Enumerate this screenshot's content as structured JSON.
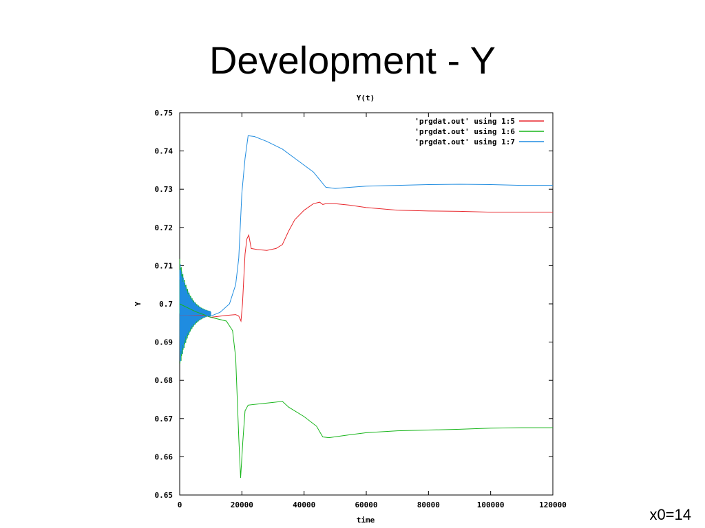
{
  "slide": {
    "title": "Development - Y",
    "footnote": "x0=14"
  },
  "chart_data": {
    "type": "line",
    "title": "Y(t)",
    "xlabel": "time",
    "ylabel": "Y",
    "xlim": [
      0,
      120000
    ],
    "ylim": [
      0.65,
      0.75
    ],
    "x_ticks": [
      "0",
      "20000",
      "40000",
      "60000",
      "80000",
      "100000",
      "120000"
    ],
    "y_ticks": [
      "0.65",
      "0.66",
      "0.67",
      "0.68",
      "0.69",
      "0.7",
      "0.71",
      "0.72",
      "0.73",
      "0.74",
      "0.75"
    ],
    "legend_position": "top-right",
    "series": [
      {
        "name": "'prgdat.out' using 1:5",
        "color": "#e8262b",
        "points": [
          [
            0,
            0.697
          ],
          [
            8000,
            0.697
          ],
          [
            10000,
            0.6965
          ],
          [
            15000,
            0.697
          ],
          [
            18000,
            0.6972
          ],
          [
            19000,
            0.6968
          ],
          [
            19700,
            0.6955
          ],
          [
            20200,
            0.7
          ],
          [
            21000,
            0.713
          ],
          [
            21600,
            0.717
          ],
          [
            22200,
            0.718
          ],
          [
            23000,
            0.7145
          ],
          [
            25000,
            0.7142
          ],
          [
            28000,
            0.714
          ],
          [
            31000,
            0.7145
          ],
          [
            33000,
            0.7155
          ],
          [
            35000,
            0.719
          ],
          [
            37000,
            0.722
          ],
          [
            40000,
            0.7245
          ],
          [
            43000,
            0.7262
          ],
          [
            45000,
            0.7266
          ],
          [
            46000,
            0.726
          ],
          [
            47000,
            0.7262
          ],
          [
            50000,
            0.7262
          ],
          [
            55000,
            0.7258
          ],
          [
            60000,
            0.7252
          ],
          [
            70000,
            0.7245
          ],
          [
            80000,
            0.7243
          ],
          [
            90000,
            0.7242
          ],
          [
            100000,
            0.724
          ],
          [
            110000,
            0.724
          ],
          [
            120000,
            0.724
          ]
        ]
      },
      {
        "name": "'prgdat.out' using 1:6",
        "color": "#17b51a",
        "points": [
          [
            0,
            0.7
          ],
          [
            5000,
            0.698
          ],
          [
            10000,
            0.6965
          ],
          [
            15000,
            0.6955
          ],
          [
            17000,
            0.693
          ],
          [
            18000,
            0.686
          ],
          [
            19000,
            0.665
          ],
          [
            19600,
            0.6545
          ],
          [
            20300,
            0.664
          ],
          [
            21000,
            0.672
          ],
          [
            22000,
            0.6735
          ],
          [
            25000,
            0.6738
          ],
          [
            30000,
            0.6742
          ],
          [
            33000,
            0.6745
          ],
          [
            35000,
            0.673
          ],
          [
            40000,
            0.6705
          ],
          [
            44000,
            0.668
          ],
          [
            46000,
            0.6652
          ],
          [
            48000,
            0.665
          ],
          [
            55000,
            0.6658
          ],
          [
            60000,
            0.6663
          ],
          [
            70000,
            0.6668
          ],
          [
            80000,
            0.667
          ],
          [
            90000,
            0.6672
          ],
          [
            100000,
            0.6675
          ],
          [
            110000,
            0.6676
          ],
          [
            120000,
            0.6676
          ]
        ]
      },
      {
        "name": "'prgdat.out' using 1:7",
        "color": "#1f8ce0",
        "points": [
          [
            0,
            0.697
          ],
          [
            10000,
            0.6968
          ],
          [
            13000,
            0.6978
          ],
          [
            16000,
            0.7
          ],
          [
            18000,
            0.705
          ],
          [
            19000,
            0.712
          ],
          [
            20000,
            0.729
          ],
          [
            21000,
            0.738
          ],
          [
            22000,
            0.744
          ],
          [
            24000,
            0.7438
          ],
          [
            28000,
            0.7425
          ],
          [
            33000,
            0.7405
          ],
          [
            38000,
            0.7375
          ],
          [
            43000,
            0.7345
          ],
          [
            45000,
            0.7325
          ],
          [
            47000,
            0.7305
          ],
          [
            50000,
            0.7302
          ],
          [
            55000,
            0.7305
          ],
          [
            60000,
            0.7308
          ],
          [
            70000,
            0.731
          ],
          [
            80000,
            0.7312
          ],
          [
            90000,
            0.7313
          ],
          [
            100000,
            0.7312
          ],
          [
            110000,
            0.731
          ],
          [
            120000,
            0.731
          ]
        ]
      }
    ],
    "initial_oscillation": {
      "x_range": [
        0,
        10000
      ],
      "amplitude_start": 0.0145,
      "colors": [
        "#17b51a",
        "#1f8ce0"
      ]
    }
  }
}
